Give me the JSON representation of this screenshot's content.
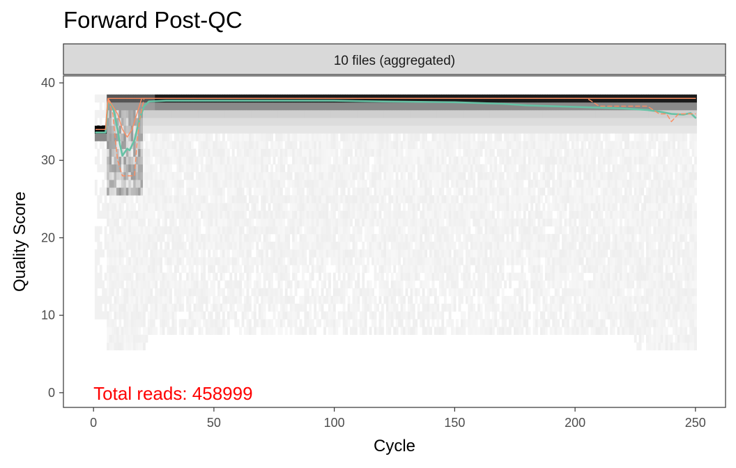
{
  "colors": {
    "mean_line": "#66c2a5",
    "quartile_lines": "#fc8d62",
    "annotation": "#ff0000",
    "strip_fill": "#d9d9d9",
    "panel_border": "#333333"
  },
  "chart_data": {
    "type": "heatmap",
    "title": "Forward Post-QC",
    "facet_label": "10 files (aggregated)",
    "xlabel": "Cycle",
    "ylabel": "Quality Score",
    "xlim": [
      -12.5,
      262.5
    ],
    "ylim": [
      -1.9,
      40.9
    ],
    "x_ticks": [
      0,
      50,
      100,
      150,
      200,
      250
    ],
    "y_ticks": [
      0,
      10,
      20,
      30,
      40
    ],
    "grid": false,
    "annotation": "Total reads: 458999",
    "series": [
      {
        "name": "mean",
        "color": "#66c2a5",
        "style": "solid",
        "points": [
          [
            1,
            33.6
          ],
          [
            5,
            33.6
          ],
          [
            6,
            37.6
          ],
          [
            8,
            37.0
          ],
          [
            10,
            34.0
          ],
          [
            11,
            32.0
          ],
          [
            12,
            30.6
          ],
          [
            14,
            31.5
          ],
          [
            15,
            31.3
          ],
          [
            17,
            32.6
          ],
          [
            19,
            35.2
          ],
          [
            21,
            37.0
          ],
          [
            23,
            37.6
          ],
          [
            30,
            37.7
          ],
          [
            50,
            37.7
          ],
          [
            80,
            37.7
          ],
          [
            100,
            37.7
          ],
          [
            120,
            37.6
          ],
          [
            150,
            37.5
          ],
          [
            170,
            37.3
          ],
          [
            180,
            37.1
          ],
          [
            190,
            37.0
          ],
          [
            200,
            36.9
          ],
          [
            210,
            36.8
          ],
          [
            220,
            36.7
          ],
          [
            230,
            36.5
          ],
          [
            235,
            36.3
          ],
          [
            240,
            36.0
          ],
          [
            245,
            35.9
          ],
          [
            248,
            36.1
          ],
          [
            250,
            35.5
          ]
        ]
      },
      {
        "name": "median",
        "color": "#fc8d62",
        "style": "solid",
        "points": [
          [
            1,
            34.0
          ],
          [
            5,
            34.0
          ],
          [
            6,
            38.0
          ],
          [
            10,
            36.0
          ],
          [
            12,
            34.0
          ],
          [
            14,
            33.0
          ],
          [
            16,
            34.0
          ],
          [
            18,
            36.0
          ],
          [
            20,
            38.0
          ],
          [
            250,
            38.0
          ]
        ]
      },
      {
        "name": "q25",
        "color": "#fc8d62",
        "style": "dashed",
        "points": [
          [
            1,
            34.0
          ],
          [
            5,
            34.0
          ],
          [
            6,
            38.0
          ],
          [
            8,
            36.0
          ],
          [
            10,
            30.0
          ],
          [
            12,
            28.0
          ],
          [
            15,
            28.0
          ],
          [
            17,
            28.0
          ],
          [
            18,
            32.0
          ],
          [
            19,
            35.0
          ],
          [
            21,
            38.0
          ],
          [
            205,
            38.0
          ],
          [
            210,
            37.0
          ],
          [
            222,
            37.0
          ],
          [
            230,
            37.0
          ],
          [
            235,
            36.0
          ],
          [
            238,
            36.0
          ],
          [
            240,
            35.0
          ],
          [
            243,
            36.0
          ],
          [
            250,
            36.0
          ]
        ]
      },
      {
        "name": "q75",
        "color": "#fc8d62",
        "style": "solid",
        "points": [
          [
            1,
            34.0
          ],
          [
            5,
            34.0
          ],
          [
            6,
            38.0
          ],
          [
            250,
            38.0
          ]
        ]
      }
    ]
  }
}
